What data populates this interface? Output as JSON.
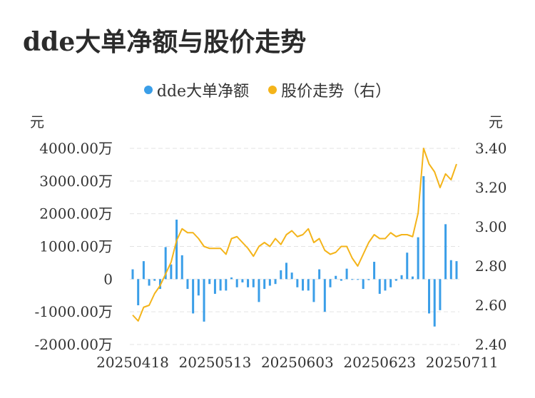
{
  "title": "dde大单净额与股价走势",
  "legend": {
    "series1": "dde大单净额",
    "series2": "股价走势（右）"
  },
  "axes": {
    "left_unit": "元",
    "right_unit": "元"
  },
  "colors": {
    "bar": "#3a9ee8",
    "line": "#f4b41a",
    "grid": "#e3e3e3"
  },
  "chart_data": {
    "type": "bar",
    "title": "dde大单净额与股价走势",
    "left_axis": {
      "min": -2000,
      "max": 4000,
      "ticks": [
        4000,
        3000,
        2000,
        1000,
        0,
        -1000,
        -2000
      ],
      "tick_labels": [
        "4000.00万",
        "3000.00万",
        "2000.00万",
        "1000.00万",
        "0",
        "-1000.00万",
        "-2000.00万"
      ]
    },
    "right_axis": {
      "min": 2.4,
      "max": 3.4,
      "ticks": [
        3.4,
        3.2,
        3.0,
        2.8,
        2.6,
        2.4
      ],
      "tick_labels": [
        "3.40",
        "3.20",
        "3.00",
        "2.80",
        "2.60",
        "2.40"
      ]
    },
    "x_tick_labels": [
      "20250418",
      "20250513",
      "20250603",
      "20250623",
      "20250711"
    ],
    "x_tick_index": [
      0,
      15,
      30,
      45,
      60
    ],
    "grid": true,
    "series": [
      {
        "name": "dde大单净额",
        "type": "bar",
        "axis": "left",
        "values": [
          300,
          -800,
          550,
          -200,
          -50,
          -300,
          980,
          450,
          1820,
          730,
          -300,
          -1050,
          -500,
          -1300,
          -150,
          -450,
          -350,
          -350,
          50,
          -250,
          -100,
          -250,
          -250,
          -700,
          -300,
          -200,
          -150,
          270,
          500,
          200,
          -250,
          -350,
          -350,
          -700,
          300,
          -1000,
          -250,
          100,
          -50,
          320,
          -20,
          -20,
          -300,
          -30,
          530,
          -450,
          -350,
          -250,
          -50,
          120,
          810,
          80,
          1280,
          3150,
          -1050,
          -1450,
          -950,
          1680,
          580,
          550
        ]
      },
      {
        "name": "股价走势（右）",
        "type": "line",
        "axis": "right",
        "values": [
          2.55,
          2.52,
          2.59,
          2.6,
          2.66,
          2.7,
          2.76,
          2.82,
          2.93,
          2.99,
          2.97,
          2.97,
          2.94,
          2.9,
          2.89,
          2.89,
          2.89,
          2.86,
          2.94,
          2.95,
          2.92,
          2.89,
          2.85,
          2.9,
          2.92,
          2.9,
          2.94,
          2.91,
          2.96,
          2.98,
          2.95,
          2.96,
          2.99,
          2.92,
          2.94,
          2.88,
          2.86,
          2.87,
          2.9,
          2.9,
          2.84,
          2.8,
          2.86,
          2.92,
          2.96,
          2.94,
          2.94,
          2.97,
          2.95,
          2.96,
          2.96,
          2.95,
          3.07,
          3.4,
          3.32,
          3.28,
          3.2,
          3.27,
          3.24,
          3.32
        ]
      }
    ]
  }
}
